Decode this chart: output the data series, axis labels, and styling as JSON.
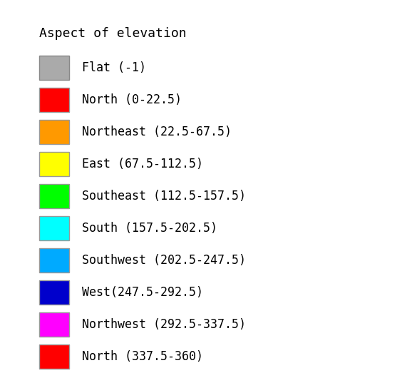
{
  "title": "Aspect of elevation",
  "background_color": "#ffffff",
  "entries": [
    {
      "label": "Flat (-1)",
      "color": "#aaaaaa",
      "edgecolor": "#888888"
    },
    {
      "label": "North (0-22.5)",
      "color": "#ff0000",
      "edgecolor": "#999999"
    },
    {
      "label": "Northeast (22.5-67.5)",
      "color": "#ff9900",
      "edgecolor": "#999999"
    },
    {
      "label": "East (67.5-112.5)",
      "color": "#ffff00",
      "edgecolor": "#999999"
    },
    {
      "label": "Southeast (112.5-157.5)",
      "color": "#00ff00",
      "edgecolor": "#999999"
    },
    {
      "label": "South (157.5-202.5)",
      "color": "#00ffff",
      "edgecolor": "#999999"
    },
    {
      "label": "Southwest (202.5-247.5)",
      "color": "#00aaff",
      "edgecolor": "#999999"
    },
    {
      "label": "West(247.5-292.5)",
      "color": "#0000cc",
      "edgecolor": "#999999"
    },
    {
      "label": "Northwest (292.5-337.5)",
      "color": "#ff00ff",
      "edgecolor": "#999999"
    },
    {
      "label": "North (337.5-360)",
      "color": "#ff0000",
      "edgecolor": "#999999"
    }
  ],
  "title_fontsize": 13,
  "label_fontsize": 12,
  "figsize": [
    5.64,
    5.37
  ],
  "dpi": 100
}
